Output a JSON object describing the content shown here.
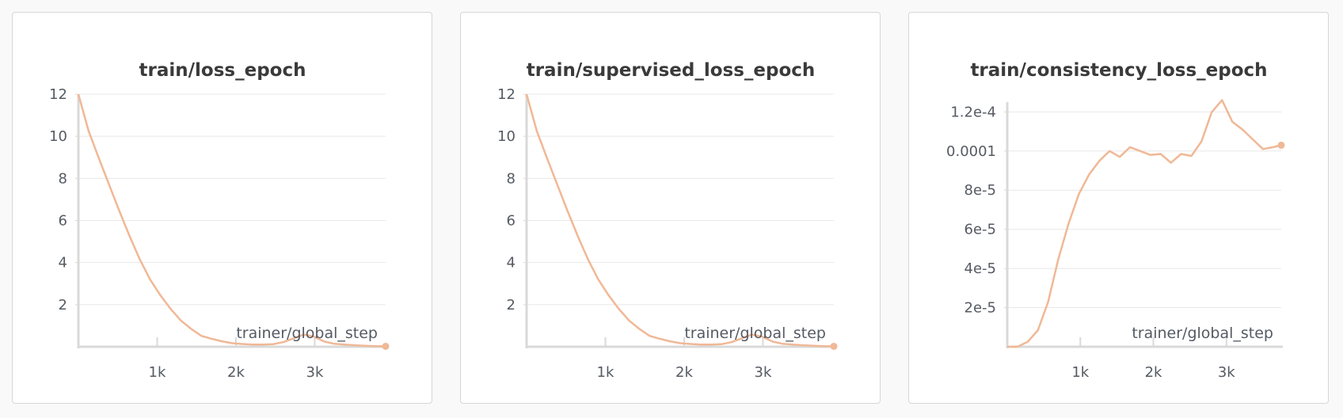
{
  "colors": {
    "series": "#f0b896",
    "grid": "#e8e8e8",
    "axis": "#d9d9d9",
    "text": "#555a63",
    "title": "#3a3a3a"
  },
  "chart_data": [
    {
      "type": "line",
      "title": "train/loss_epoch",
      "xlabel": "trainer/global_step",
      "ylabel": "",
      "xlim": [
        0,
        3900
      ],
      "ylim": [
        0,
        12
      ],
      "x_ticks": [
        {
          "v": 1000,
          "label": "1k"
        },
        {
          "v": 2000,
          "label": "2k"
        },
        {
          "v": 3000,
          "label": "3k"
        }
      ],
      "y_ticks": [
        {
          "v": 2,
          "label": "2"
        },
        {
          "v": 4,
          "label": "4"
        },
        {
          "v": 6,
          "label": "6"
        },
        {
          "v": 8,
          "label": "8"
        },
        {
          "v": 10,
          "label": "10"
        },
        {
          "v": 12,
          "label": "12"
        }
      ],
      "grid": true,
      "series": [
        {
          "x": [
            0,
            130,
            260,
            390,
            520,
            650,
            780,
            910,
            1040,
            1170,
            1300,
            1430,
            1560,
            1690,
            1820,
            1950,
            2080,
            2210,
            2340,
            2470,
            2600,
            2730,
            2860,
            2990,
            3120,
            3250,
            3380,
            3510,
            3640,
            3770,
            3900
          ],
          "y": [
            12.0,
            10.25,
            8.95,
            7.7,
            6.45,
            5.25,
            4.15,
            3.2,
            2.45,
            1.8,
            1.25,
            0.85,
            0.52,
            0.38,
            0.26,
            0.17,
            0.13,
            0.1,
            0.1,
            0.12,
            0.22,
            0.4,
            0.58,
            0.48,
            0.25,
            0.14,
            0.1,
            0.07,
            0.05,
            0.03,
            0.02
          ]
        }
      ]
    },
    {
      "type": "line",
      "title": "train/supervised_loss_epoch",
      "xlabel": "trainer/global_step",
      "ylabel": "",
      "xlim": [
        0,
        3900
      ],
      "ylim": [
        0,
        12
      ],
      "x_ticks": [
        {
          "v": 1000,
          "label": "1k"
        },
        {
          "v": 2000,
          "label": "2k"
        },
        {
          "v": 3000,
          "label": "3k"
        }
      ],
      "y_ticks": [
        {
          "v": 2,
          "label": "2"
        },
        {
          "v": 4,
          "label": "4"
        },
        {
          "v": 6,
          "label": "6"
        },
        {
          "v": 8,
          "label": "8"
        },
        {
          "v": 10,
          "label": "10"
        },
        {
          "v": 12,
          "label": "12"
        }
      ],
      "grid": true,
      "series": [
        {
          "x": [
            0,
            130,
            260,
            390,
            520,
            650,
            780,
            910,
            1040,
            1170,
            1300,
            1430,
            1560,
            1690,
            1820,
            1950,
            2080,
            2210,
            2340,
            2470,
            2600,
            2730,
            2860,
            2990,
            3120,
            3250,
            3380,
            3510,
            3640,
            3770,
            3900
          ],
          "y": [
            12.0,
            10.25,
            8.95,
            7.7,
            6.45,
            5.25,
            4.15,
            3.2,
            2.45,
            1.8,
            1.25,
            0.85,
            0.52,
            0.38,
            0.26,
            0.17,
            0.13,
            0.1,
            0.1,
            0.12,
            0.22,
            0.4,
            0.58,
            0.48,
            0.25,
            0.14,
            0.1,
            0.07,
            0.05,
            0.03,
            0.02
          ]
        }
      ]
    },
    {
      "type": "line",
      "title": "train/consistency_loss_epoch",
      "xlabel": "trainer/global_step",
      "ylabel": "",
      "xlim": [
        0,
        3750
      ],
      "ylim": [
        0,
        0.000125
      ],
      "x_ticks": [
        {
          "v": 1000,
          "label": "1k"
        },
        {
          "v": 2000,
          "label": "2k"
        },
        {
          "v": 3000,
          "label": "3k"
        }
      ],
      "y_ticks": [
        {
          "v": 2e-05,
          "label": "2e-5"
        },
        {
          "v": 4e-05,
          "label": "4e-5"
        },
        {
          "v": 6e-05,
          "label": "6e-5"
        },
        {
          "v": 8e-05,
          "label": "8e-5"
        },
        {
          "v": 0.0001,
          "label": "0.0001"
        },
        {
          "v": 0.00012,
          "label": "1.2e-4"
        }
      ],
      "grid": true,
      "series": [
        {
          "x": [
            0,
            140,
            280,
            420,
            560,
            700,
            840,
            980,
            1120,
            1260,
            1400,
            1540,
            1680,
            1820,
            1960,
            2100,
            2240,
            2380,
            2520,
            2660,
            2800,
            2940,
            3080,
            3220,
            3360,
            3500,
            3640,
            3750
          ],
          "y": [
            0.0,
            0.0,
            2.5e-06,
            8.5e-06,
            2.3e-05,
            4.5e-05,
            6.3e-05,
            7.8e-05,
            8.8e-05,
            9.5e-05,
            0.0001,
            9.7e-05,
            0.000102,
            0.0001,
            9.8e-05,
            9.85e-05,
            9.4e-05,
            9.85e-05,
            9.75e-05,
            0.000105,
            0.00012,
            0.000126,
            0.000115,
            0.000111,
            0.000106,
            0.000101,
            0.000102,
            0.000103
          ]
        }
      ]
    }
  ]
}
